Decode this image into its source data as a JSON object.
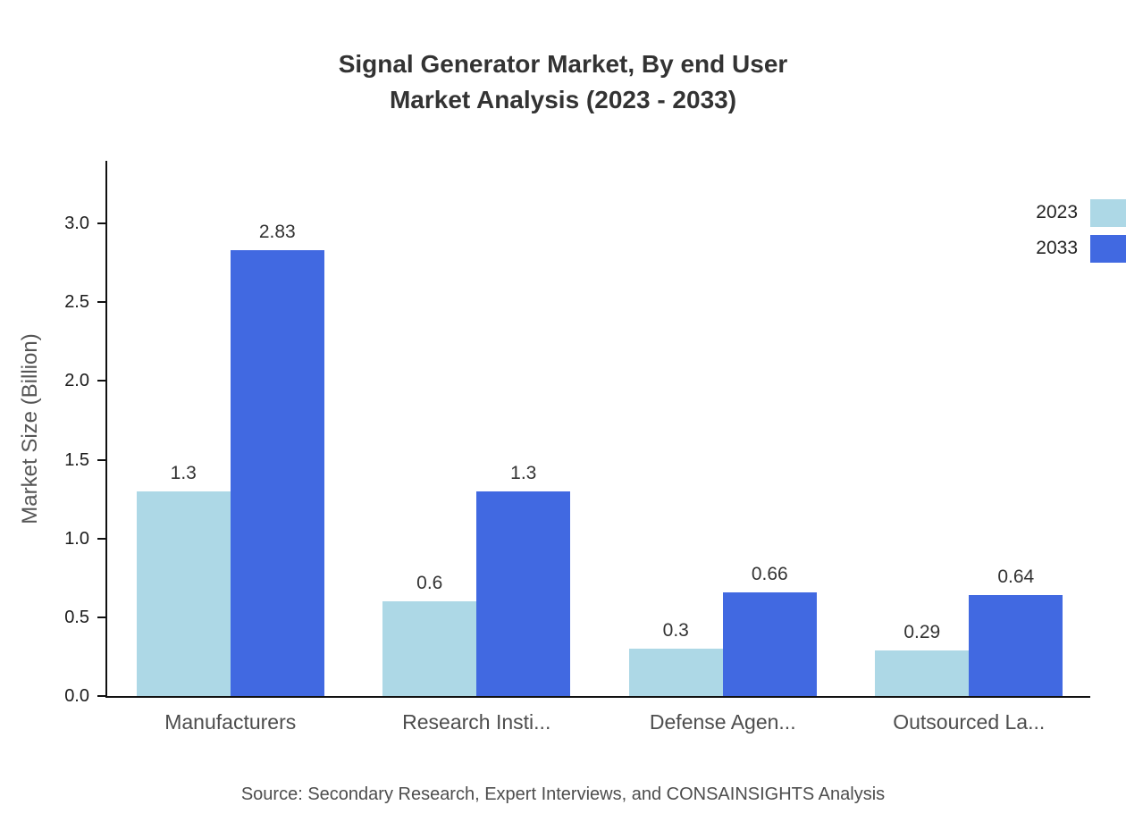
{
  "title": {
    "line1": "Signal Generator Market, By end User",
    "line2": "Market Analysis (2023 - 2033)"
  },
  "source": "Source: Secondary Research, Expert Interviews, and CONSAINSIGHTS Analysis",
  "chart_data": {
    "type": "bar",
    "title": "Signal Generator Market, By end User Market Analysis (2023 - 2033)",
    "categories": [
      "Manufacturers",
      "Research Insti...",
      "Defense Agen...",
      "Outsourced La..."
    ],
    "series": [
      {
        "name": "2023",
        "color": "#ADD8E6",
        "values": [
          1.3,
          0.6,
          0.3,
          0.29
        ]
      },
      {
        "name": "2033",
        "color": "#4169E1",
        "values": [
          2.83,
          1.3,
          0.66,
          0.64
        ]
      }
    ],
    "xlabel": "",
    "ylabel": "Market Size (Billion)",
    "ylim": [
      0,
      3.0
    ],
    "yticks": [
      0.0,
      0.5,
      1.0,
      1.5,
      2.0,
      2.5,
      3.0
    ],
    "legend_position": "top-right",
    "grid": false
  }
}
